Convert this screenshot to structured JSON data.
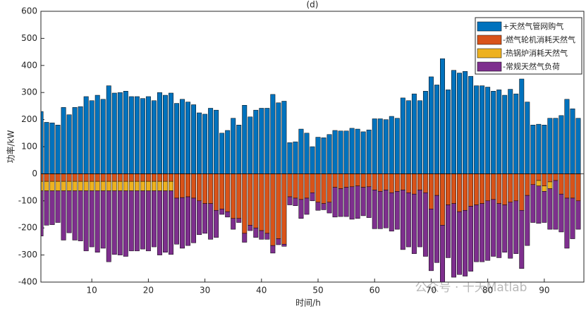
{
  "chart_data": {
    "type": "stacked-bar",
    "title": "(d)",
    "x_label": "时间/h",
    "y_label": "功率/kW",
    "watermark": "公众号 · 十天Matlab",
    "x": [
      1,
      2,
      3,
      4,
      5,
      6,
      7,
      8,
      9,
      10,
      11,
      12,
      13,
      14,
      15,
      16,
      17,
      18,
      19,
      20,
      21,
      22,
      23,
      24,
      25,
      26,
      27,
      28,
      29,
      30,
      31,
      32,
      33,
      34,
      35,
      36,
      37,
      38,
      39,
      40,
      41,
      42,
      43,
      44,
      45,
      46,
      47,
      48,
      49,
      50,
      51,
      52,
      53,
      54,
      55,
      56,
      57,
      58,
      59,
      60,
      61,
      62,
      63,
      64,
      65,
      66,
      67,
      68,
      69,
      70,
      71,
      72,
      73,
      74,
      75,
      76,
      77,
      78,
      79,
      80,
      81,
      82,
      83,
      84,
      85,
      86,
      87,
      88,
      89,
      90,
      91,
      92,
      93,
      94,
      95,
      96
    ],
    "xlim": [
      1,
      97
    ],
    "xticks": [
      10,
      20,
      30,
      40,
      50,
      60,
      70,
      80,
      90
    ],
    "ylim": [
      -400,
      600
    ],
    "yticks": [
      -400,
      -300,
      -200,
      -100,
      0,
      100,
      200,
      300,
      400,
      500,
      600
    ],
    "legend_position": "upper-right",
    "series": [
      {
        "name": "+天然气管网购气",
        "color": "#0072bd",
        "values": [
          230,
          190,
          188,
          180,
          245,
          218,
          245,
          248,
          285,
          270,
          290,
          275,
          325,
          298,
          300,
          305,
          285,
          285,
          278,
          285,
          270,
          300,
          290,
          298,
          260,
          275,
          265,
          255,
          225,
          220,
          242,
          235,
          150,
          160,
          205,
          180,
          253,
          210,
          235,
          242,
          242,
          293,
          262,
          268,
          115,
          118,
          165,
          150,
          100,
          135,
          133,
          145,
          160,
          158,
          158,
          168,
          165,
          155,
          162,
          203,
          203,
          200,
          212,
          205,
          280,
          270,
          295,
          270,
          305,
          358,
          328,
          425,
          310,
          382,
          372,
          378,
          360,
          325,
          325,
          320,
          305,
          310,
          290,
          312,
          295,
          350,
          265,
          180,
          183,
          180,
          205,
          205,
          215,
          275,
          240,
          205
        ]
      },
      {
        "name": "-燃气轮机消耗天然气",
        "color": "#d95319",
        "values": [
          -28,
          -28,
          -28,
          -28,
          -28,
          -28,
          -28,
          -28,
          -28,
          -28,
          -28,
          -28,
          -28,
          -28,
          -28,
          -28,
          -28,
          -28,
          -28,
          -28,
          -28,
          -28,
          -28,
          -28,
          -90,
          -88,
          -85,
          -90,
          -100,
          -110,
          -110,
          -135,
          -130,
          -140,
          -165,
          -165,
          -220,
          -190,
          -200,
          -210,
          -220,
          -265,
          -240,
          -260,
          -85,
          -90,
          -95,
          -90,
          -70,
          -105,
          -110,
          -105,
          -50,
          -55,
          -50,
          -48,
          -45,
          -50,
          -48,
          -60,
          -65,
          -60,
          -70,
          -65,
          -60,
          -70,
          -75,
          -60,
          -70,
          -130,
          -80,
          -190,
          -115,
          -110,
          -140,
          -135,
          -120,
          -115,
          -110,
          -100,
          -95,
          -110,
          -115,
          -105,
          -100,
          -135,
          -80,
          -40,
          -25,
          -45,
          -30,
          -25,
          -75,
          -90,
          -90,
          -100
        ]
      },
      {
        "name": "-热锅炉消耗天然气",
        "color": "#edb120",
        "values": [
          -35,
          -35,
          -35,
          -35,
          -35,
          -35,
          -35,
          -35,
          -35,
          -35,
          -35,
          -35,
          -35,
          -35,
          -35,
          -35,
          -35,
          -35,
          -35,
          -35,
          -35,
          -35,
          -35,
          -35,
          0,
          0,
          0,
          0,
          0,
          0,
          0,
          0,
          0,
          0,
          0,
          0,
          0,
          0,
          0,
          0,
          0,
          0,
          0,
          0,
          0,
          0,
          0,
          0,
          0,
          0,
          0,
          0,
          0,
          0,
          0,
          0,
          0,
          0,
          0,
          0,
          0,
          0,
          0,
          0,
          0,
          0,
          0,
          0,
          0,
          0,
          0,
          0,
          0,
          0,
          0,
          0,
          0,
          0,
          0,
          0,
          0,
          0,
          0,
          0,
          0,
          0,
          0,
          0,
          -20,
          -20,
          -25,
          0,
          0,
          0,
          0,
          0
        ]
      },
      {
        "name": "-常规天然气负荷",
        "color": "#7e2f8e",
        "values": [
          -167,
          -127,
          -125,
          -117,
          -182,
          -155,
          -182,
          -185,
          -222,
          -207,
          -227,
          -212,
          -262,
          -235,
          -237,
          -242,
          -222,
          -222,
          -215,
          -222,
          -207,
          -237,
          -227,
          -235,
          -170,
          -187,
          -180,
          -165,
          -125,
          -110,
          -132,
          -100,
          -20,
          -20,
          -40,
          -15,
          -33,
          -20,
          -35,
          -32,
          -22,
          -28,
          -22,
          -8,
          -30,
          -28,
          -70,
          -60,
          -30,
          -30,
          -23,
          -40,
          -110,
          -103,
          -108,
          -120,
          -120,
          -105,
          -114,
          -143,
          -138,
          -140,
          -142,
          -140,
          -220,
          -200,
          -220,
          -210,
          -235,
          -228,
          -248,
          -235,
          -195,
          -272,
          -232,
          -243,
          -240,
          -210,
          -215,
          -220,
          -210,
          -200,
          -175,
          -207,
          -195,
          -215,
          -185,
          -140,
          -138,
          -115,
          -150,
          -180,
          -140,
          -185,
          -150,
          -105
        ]
      }
    ]
  }
}
